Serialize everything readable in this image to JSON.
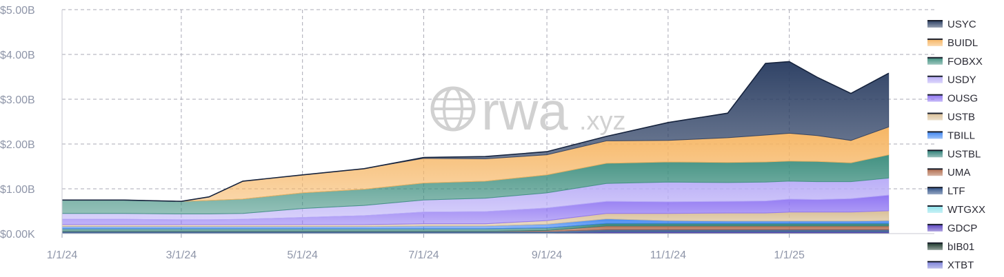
{
  "watermark": {
    "brand": "rwa",
    "suffix": ".xyz",
    "icon": "globe-icon"
  },
  "chart_data": {
    "type": "area",
    "stacked": true,
    "title": "",
    "xlabel": "",
    "ylabel": "",
    "x_tick_labels": [
      "1/1/24",
      "3/1/24",
      "5/1/24",
      "7/1/24",
      "9/1/24",
      "11/1/24",
      "1/1/25"
    ],
    "y_tick_labels": [
      "$0.00K",
      "$1.00B",
      "$2.00B",
      "$3.00B",
      "$4.00B",
      "$5.00B"
    ],
    "ylim": [
      0,
      5
    ],
    "y_unit": "B USD",
    "grid": true,
    "legend_position": "right",
    "x": [
      "2024-01-01",
      "2024-02-01",
      "2024-03-01",
      "2024-03-15",
      "2024-04-01",
      "2024-05-01",
      "2024-06-01",
      "2024-07-01",
      "2024-08-01",
      "2024-09-01",
      "2024-10-01",
      "2024-11-01",
      "2024-12-01",
      "2024-12-20",
      "2025-01-01",
      "2025-01-15",
      "2025-02-01",
      "2025-02-20"
    ],
    "series": [
      {
        "name": "XTBT",
        "color": "#7b7fd8",
        "values": [
          0,
          0,
          0,
          0,
          0,
          0,
          0,
          0,
          0,
          0,
          0,
          0,
          0,
          0,
          0,
          0,
          0,
          0
        ]
      },
      {
        "name": "bIB01",
        "color": "#1f3a2e",
        "values": [
          0.02,
          0.02,
          0.02,
          0.02,
          0.02,
          0.02,
          0.02,
          0.02,
          0.02,
          0.02,
          0.02,
          0.02,
          0.02,
          0.02,
          0.02,
          0.02,
          0.02,
          0.02
        ]
      },
      {
        "name": "GDCP",
        "color": "#5b43c0",
        "values": [
          0,
          0,
          0,
          0,
          0,
          0,
          0,
          0,
          0,
          0,
          0.02,
          0.02,
          0.02,
          0.02,
          0.02,
          0.02,
          0.02,
          0.02
        ]
      },
      {
        "name": "WTGXX",
        "color": "#8fe3ec",
        "values": [
          0,
          0,
          0,
          0,
          0,
          0,
          0,
          0,
          0,
          0,
          0,
          0,
          0,
          0,
          0,
          0,
          0,
          0
        ]
      },
      {
        "name": "LTF",
        "color": "#2d4f86",
        "values": [
          0.03,
          0.03,
          0.03,
          0.03,
          0.03,
          0.03,
          0.03,
          0.03,
          0.03,
          0.03,
          0.05,
          0.05,
          0.05,
          0.05,
          0.05,
          0.05,
          0.05,
          0.05
        ]
      },
      {
        "name": "UMA",
        "color": "#b06a4a",
        "values": [
          0,
          0,
          0,
          0,
          0,
          0,
          0,
          0,
          0,
          0.02,
          0.08,
          0.08,
          0.08,
          0.08,
          0.08,
          0.08,
          0.08,
          0.08
        ]
      },
      {
        "name": "USTBL",
        "color": "#2e8077",
        "values": [
          0.06,
          0.06,
          0.06,
          0.06,
          0.06,
          0.06,
          0.06,
          0.06,
          0.06,
          0.06,
          0.06,
          0.06,
          0.06,
          0.06,
          0.06,
          0.06,
          0.06,
          0.06
        ]
      },
      {
        "name": "TBILL",
        "color": "#3f86f2",
        "values": [
          0.05,
          0.05,
          0.05,
          0.05,
          0.05,
          0.05,
          0.05,
          0.06,
          0.06,
          0.08,
          0.1,
          0.06,
          0.05,
          0.05,
          0.05,
          0.05,
          0.05,
          0.06
        ]
      },
      {
        "name": "USTB",
        "color": "#d9bf96",
        "values": [
          0.04,
          0.04,
          0.04,
          0.04,
          0.04,
          0.04,
          0.04,
          0.05,
          0.05,
          0.08,
          0.12,
          0.16,
          0.18,
          0.18,
          0.2,
          0.2,
          0.2,
          0.22
        ]
      },
      {
        "name": "OUSG",
        "color": "#8e74f2",
        "values": [
          0.12,
          0.12,
          0.11,
          0.11,
          0.12,
          0.16,
          0.2,
          0.26,
          0.27,
          0.28,
          0.27,
          0.26,
          0.26,
          0.27,
          0.29,
          0.28,
          0.3,
          0.35
        ]
      },
      {
        "name": "USDY",
        "color": "#b9adf7",
        "values": [
          0.13,
          0.13,
          0.13,
          0.13,
          0.13,
          0.2,
          0.23,
          0.27,
          0.3,
          0.34,
          0.4,
          0.44,
          0.42,
          0.42,
          0.4,
          0.4,
          0.38,
          0.38
        ]
      },
      {
        "name": "FOBXX",
        "color": "#3e8f7f",
        "values": [
          0.3,
          0.3,
          0.28,
          0.3,
          0.32,
          0.35,
          0.36,
          0.38,
          0.38,
          0.4,
          0.45,
          0.45,
          0.45,
          0.45,
          0.45,
          0.45,
          0.42,
          0.52
        ]
      },
      {
        "name": "BUIDL",
        "color": "#f6b562",
        "values": [
          0,
          0,
          0,
          0.08,
          0.4,
          0.4,
          0.46,
          0.55,
          0.5,
          0.45,
          0.5,
          0.48,
          0.55,
          0.6,
          0.62,
          0.58,
          0.5,
          0.62
        ]
      },
      {
        "name": "USYC",
        "color": "#2c3f63",
        "values": [
          0,
          0,
          0,
          0,
          0,
          0,
          0,
          0.02,
          0.05,
          0.07,
          0.1,
          0.4,
          0.55,
          1.6,
          1.6,
          1.3,
          1.05,
          1.2
        ]
      }
    ]
  }
}
